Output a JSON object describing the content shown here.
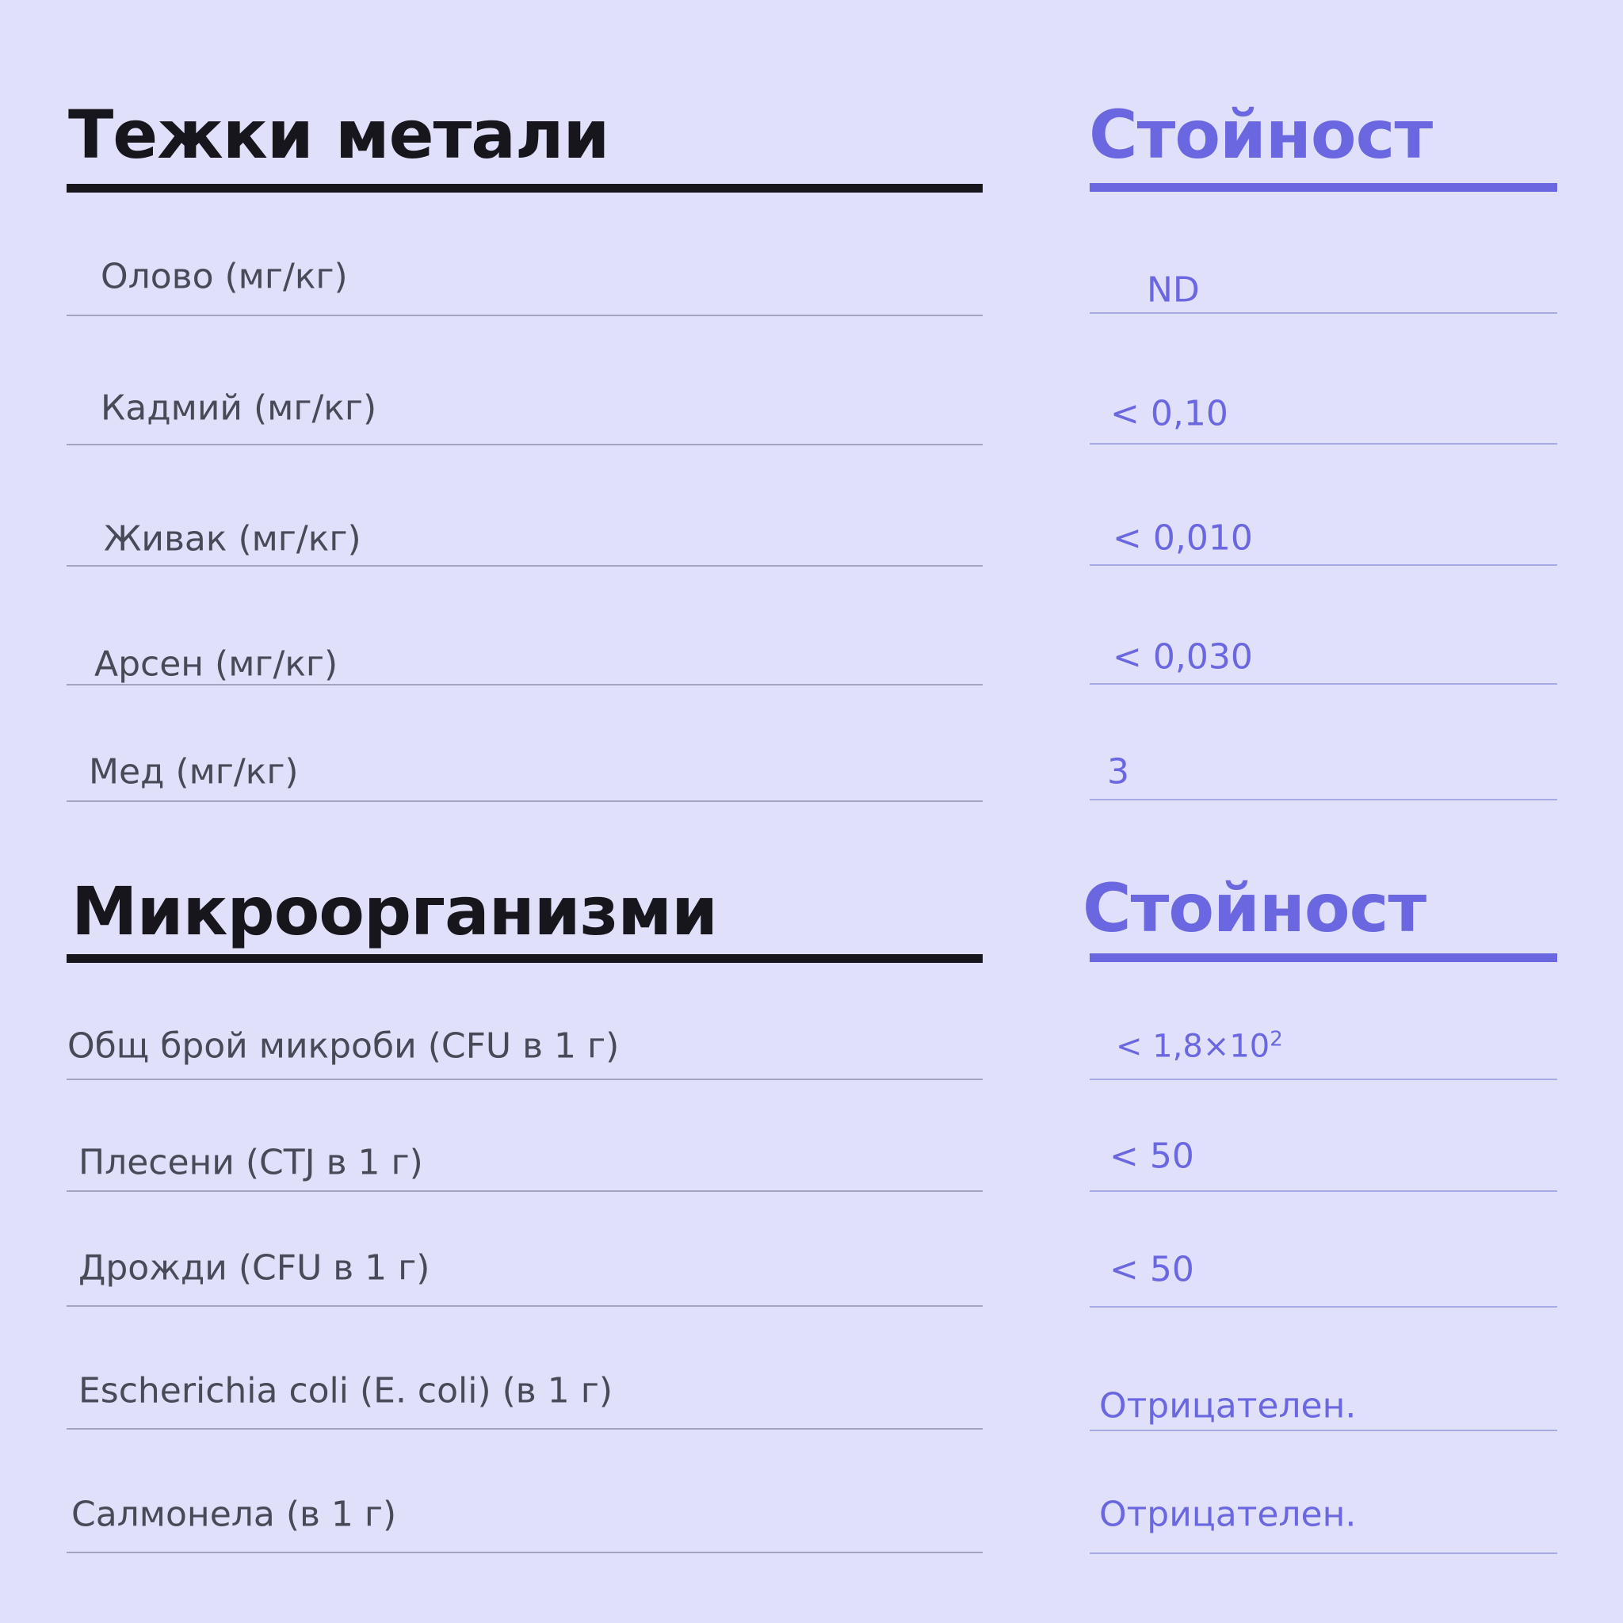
{
  "sections": [
    {
      "title": "Тежки метали",
      "value_header": "Стойност",
      "rows": [
        {
          "label": "Олово (мг/кг)",
          "value": "ND"
        },
        {
          "label": "Кадмий (мг/кг)",
          "value": "< 0,10"
        },
        {
          "label": "Живак (мг/кг)",
          "value": "< 0,010"
        },
        {
          "label": "Арсен (мг/кг)",
          "value": "< 0,030"
        },
        {
          "label": "Мед (мг/кг)",
          "value": "3"
        }
      ]
    },
    {
      "title": "Микроорганизми",
      "value_header": "Стойност",
      "rows": [
        {
          "label": "Общ брой микроби (CFU в 1 г)",
          "value": "< 1,8×10",
          "value_sup": "2"
        },
        {
          "label": "Плесени (CTJ в 1 г)",
          "value": "< 50"
        },
        {
          "label": "Дрожди (CFU в 1 г)",
          "value": "< 50"
        },
        {
          "label": "Escherichia coli (E. coli) (в 1 г)",
          "value": "Отрицателен."
        },
        {
          "label": "Салмонела (в 1 г)",
          "value": "Отрицателен."
        }
      ]
    }
  ],
  "colors": {
    "background": "#e0e0fa",
    "accent": "#6b67e0",
    "text": "#16161c"
  }
}
